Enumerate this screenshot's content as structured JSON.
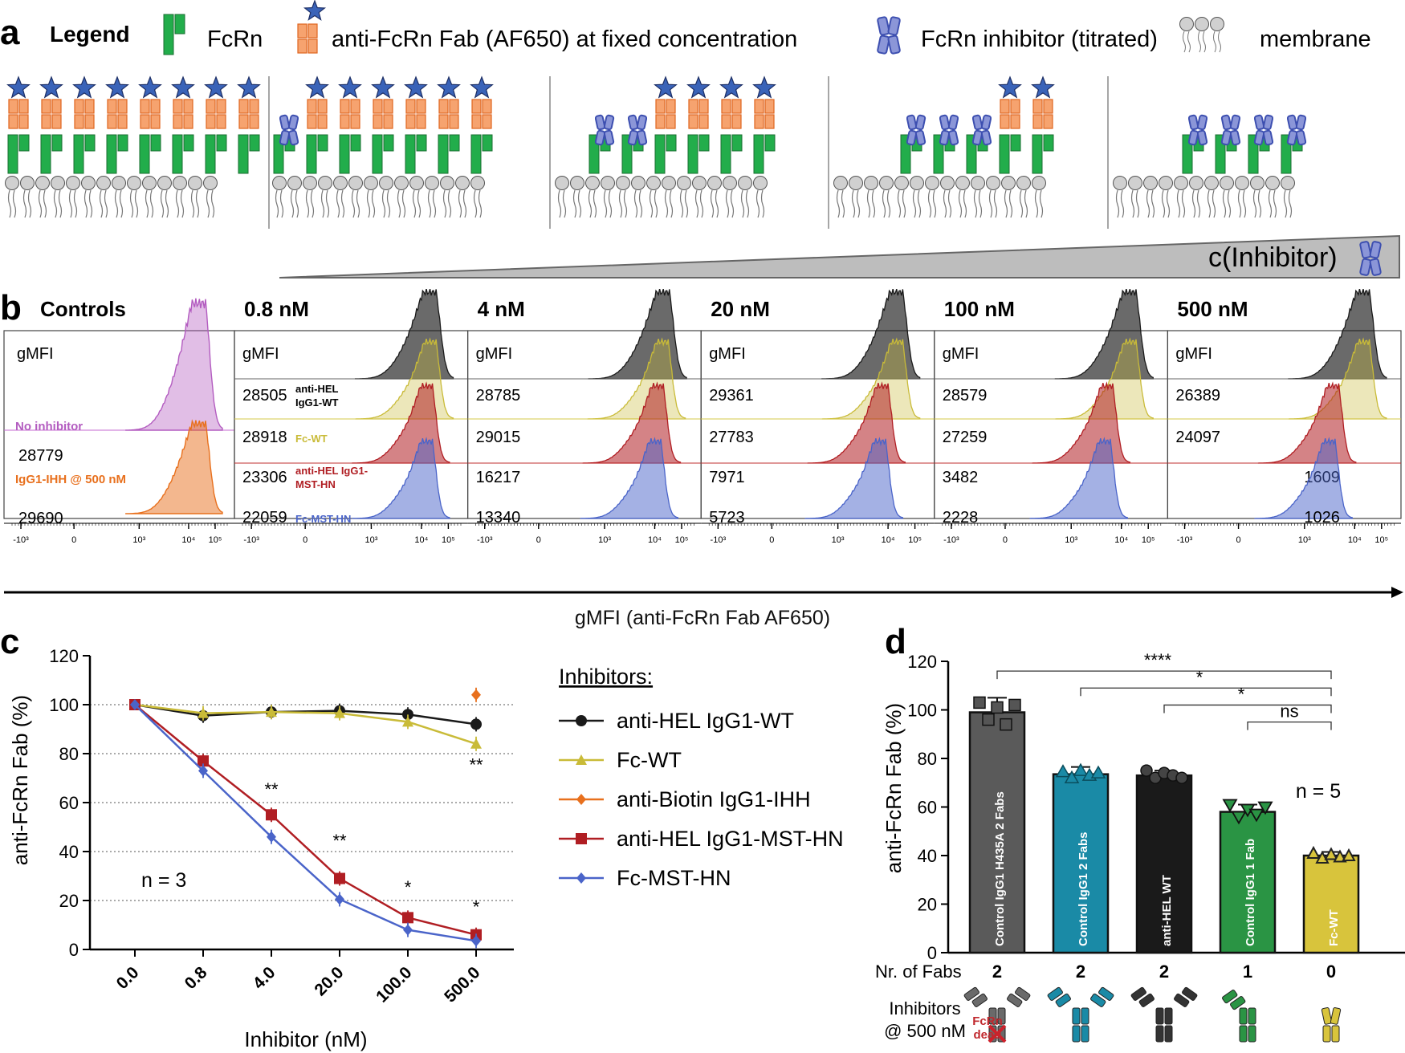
{
  "colors": {
    "fcrn": "#22ad4b",
    "fab": "#f6a36f",
    "fab_stroke": "#e0651f",
    "star": "#3a63b8",
    "inhibitor": "#3d4fb0",
    "inhibitor_fill": "#8b96d8",
    "membrane": "#d0d0d0",
    "black": "#1a1a1a",
    "gold": "#c9bb38",
    "orange": "#e8701d",
    "red": "#b01e23",
    "blue": "#4a64c9",
    "purple": "#b35cc0",
    "teal": "#1a8aa6",
    "green": "#2a9444",
    "grey": "#5a5a5a",
    "yellow": "#d8c43c"
  },
  "panel_a": {
    "label": "a",
    "legend_title": "Legend",
    "legend_items": [
      {
        "icon": "fcrn-icon",
        "label": "FcRn"
      },
      {
        "icon": "fab-star-icon",
        "label": "anti-FcRn Fab (AF650) at fixed concentration"
      },
      {
        "icon": "inhibitor-icon",
        "label": "FcRn inhibitor (titrated)"
      },
      {
        "icon": "membrane-icon",
        "label": "membrane"
      }
    ],
    "scenes": [
      {
        "units": [
          "F",
          "F",
          "F",
          "F",
          "F",
          "F",
          "F",
          "F"
        ],
        "membrane_beads": 14
      },
      {
        "units": [
          "I",
          "F",
          "F",
          "F",
          "F",
          "F",
          "F"
        ],
        "membrane_beads": 14
      },
      {
        "units": [
          "I",
          "I",
          "F",
          "F",
          "F",
          "F"
        ],
        "membrane_beads": 14
      },
      {
        "units": [
          "I",
          "I",
          "I",
          "F",
          "F"
        ],
        "membrane_beads": 14
      },
      {
        "units": [
          "I",
          "I",
          "I",
          "I"
        ],
        "membrane_beads": 12
      }
    ],
    "wedge_label": "c(Inhibitor)"
  },
  "panel_b": {
    "label": "b",
    "x_label": "gMFI (anti-FcRn Fab AF650)",
    "x_ticks": [
      "-10³",
      "0",
      "10³",
      "10⁴",
      "10⁵"
    ],
    "gmfi_label": "gMFI",
    "controls": {
      "title": "Controls",
      "rows": [
        {
          "label": "No inhibitor",
          "value": "28779",
          "color": "purple"
        },
        {
          "label": "IgG1-IHH @ 500 nM",
          "value": "29690",
          "color": "orange"
        }
      ]
    },
    "concentrations": [
      {
        "title": "0.8 nM",
        "values": [
          "28505",
          "28918",
          "23306",
          "22059"
        ],
        "peaks": [
          4.45,
          4.45,
          4.3,
          4.3
        ]
      },
      {
        "title": "4 nM",
        "values": [
          "28785",
          "29015",
          "16217",
          "13340"
        ],
        "peaks": [
          4.45,
          4.4,
          4.2,
          4.1
        ]
      },
      {
        "title": "20 nM",
        "values": [
          "29361",
          "27783",
          "7971",
          "5723"
        ],
        "peaks": [
          4.45,
          4.45,
          3.85,
          3.75
        ]
      },
      {
        "title": "100 nM",
        "values": [
          "28579",
          "27259",
          "3482",
          "2228"
        ],
        "peaks": [
          4.45,
          4.45,
          3.5,
          3.4
        ]
      },
      {
        "title": "500 nM",
        "values": [
          "26389",
          "24097",
          "1609",
          "1026"
        ],
        "peaks": [
          4.45,
          4.45,
          3.2,
          3.05
        ]
      }
    ],
    "series_labels": [
      {
        "line1": "anti-HEL",
        "line2": "IgG1-WT",
        "color": "black"
      },
      {
        "line1": "Fc-WT",
        "line2": "",
        "color": "gold"
      },
      {
        "line1": "anti-HEL IgG1-",
        "line2": "MST-HN",
        "color": "red"
      },
      {
        "line1": "Fc-MST-HN",
        "line2": "",
        "color": "blue"
      }
    ]
  },
  "panel_c": {
    "label": "c",
    "annotation_n": "n = 3",
    "legend_title": "Inhibitors:",
    "chart_data": {
      "type": "line",
      "title": "",
      "xlabel": "Inhibitor (nM)",
      "ylabel": "anti-FcRn Fab (%)",
      "categories": [
        "0.0",
        "0.8",
        "4.0",
        "20.0",
        "100.0",
        "500.0"
      ],
      "ylim": [
        0,
        120
      ],
      "yticks": [
        0,
        20,
        40,
        60,
        80,
        100,
        120
      ],
      "series": [
        {
          "name": "anti-HEL IgG1-WT",
          "color": "black",
          "marker": "circle",
          "values": [
            100,
            95.5,
            97,
            97.5,
            96,
            92
          ]
        },
        {
          "name": "Fc-WT",
          "color": "gold",
          "marker": "triangle",
          "values": [
            100,
            96.5,
            97,
            96.5,
            93,
            84
          ]
        },
        {
          "name": "anti-Biotin IgG1-IHH",
          "color": "orange",
          "marker": "diamond",
          "values": [
            null,
            null,
            null,
            null,
            null,
            104
          ]
        },
        {
          "name": "anti-HEL IgG1-MST-HN",
          "color": "red",
          "marker": "square",
          "values": [
            100,
            77,
            55,
            29,
            13,
            6
          ]
        },
        {
          "name": "Fc-MST-HN",
          "color": "blue",
          "marker": "diamond",
          "values": [
            100,
            73,
            46,
            20.5,
            8,
            3.5
          ]
        }
      ],
      "significance": [
        {
          "category": "4.0",
          "y": 63,
          "text": "**"
        },
        {
          "category": "20.0",
          "y": 42,
          "text": "**"
        },
        {
          "category": "100.0",
          "y": 23,
          "text": "*"
        },
        {
          "category": "500.0",
          "y": 15,
          "text": "*"
        },
        {
          "category": "500.0",
          "y": 73,
          "text": "**"
        }
      ]
    }
  },
  "panel_d": {
    "label": "d",
    "annotation_n": "n = 5",
    "row_label_fabs": "Nr. of Fabs",
    "row_label_inhibitors_1": "Inhibitors",
    "row_label_inhibitors_2": "@ 500 nM",
    "dead_label_1": "FcRn",
    "dead_label_2": "dead",
    "chart_data": {
      "type": "bar",
      "xlabel": "",
      "ylabel": "anti-FcRn Fab (%)",
      "ylim": [
        0,
        120
      ],
      "yticks": [
        0,
        20,
        40,
        60,
        80,
        100,
        120
      ],
      "categories": [
        "Control IgG1 H435A 2 Fabs",
        "Control IgG1 2 Fabs",
        "anti-HEL WT",
        "Control IgG1 1 Fab",
        "Fc-WT"
      ],
      "values": [
        99,
        73.5,
        73,
        58,
        40
      ],
      "errors": [
        6,
        3,
        2,
        3,
        1.5
      ],
      "nr_of_fabs": [
        "2",
        "2",
        "2",
        "1",
        "0"
      ],
      "bar_colors": [
        "grey",
        "teal",
        "black",
        "green",
        "yellow"
      ],
      "markers": [
        "square",
        "triangle",
        "circle",
        "triangle-down",
        "triangle-open"
      ],
      "points": [
        [
          103,
          96,
          101,
          94,
          102
        ],
        [
          74.5,
          72,
          75,
          73,
          74
        ],
        [
          75,
          72,
          74,
          73,
          72
        ],
        [
          61,
          56,
          59,
          57,
          60
        ],
        [
          41,
          39,
          40.5,
          39.5,
          40
        ]
      ],
      "significance": [
        {
          "from": 0,
          "to": 4,
          "y": 116,
          "text": "****"
        },
        {
          "from": 1,
          "to": 4,
          "y": 109,
          "text": "*"
        },
        {
          "from": 2,
          "to": 4,
          "y": 102,
          "text": "*"
        },
        {
          "from": 3,
          "to": 4,
          "y": 95,
          "text": "ns"
        }
      ]
    }
  }
}
